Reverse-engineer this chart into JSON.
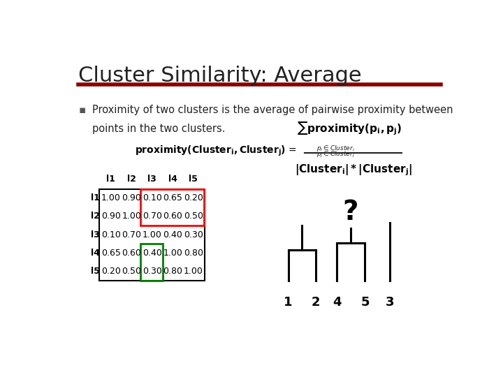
{
  "title": "Cluster Similarity: Average",
  "title_color": "#222222",
  "title_line_color": "#8B0000",
  "bg_color": "#ffffff",
  "bullet_text_line1": "Proximity of two clusters is the average of pairwise proximity between",
  "bullet_text_line2": "points in the two clusters.",
  "matrix_data": [
    [
      1.0,
      0.9,
      0.1,
      0.65,
      0.2
    ],
    [
      0.9,
      1.0,
      0.7,
      0.6,
      0.5
    ],
    [
      0.1,
      0.7,
      1.0,
      0.4,
      0.3
    ],
    [
      0.65,
      0.6,
      0.4,
      1.0,
      0.8
    ],
    [
      0.2,
      0.5,
      0.3,
      0.8,
      1.0
    ]
  ],
  "row_labels": [
    "l1",
    "l2",
    "l3",
    "l4",
    "l5"
  ],
  "col_labels": [
    "l1",
    "l2",
    "l3",
    "l4",
    "l5"
  ]
}
